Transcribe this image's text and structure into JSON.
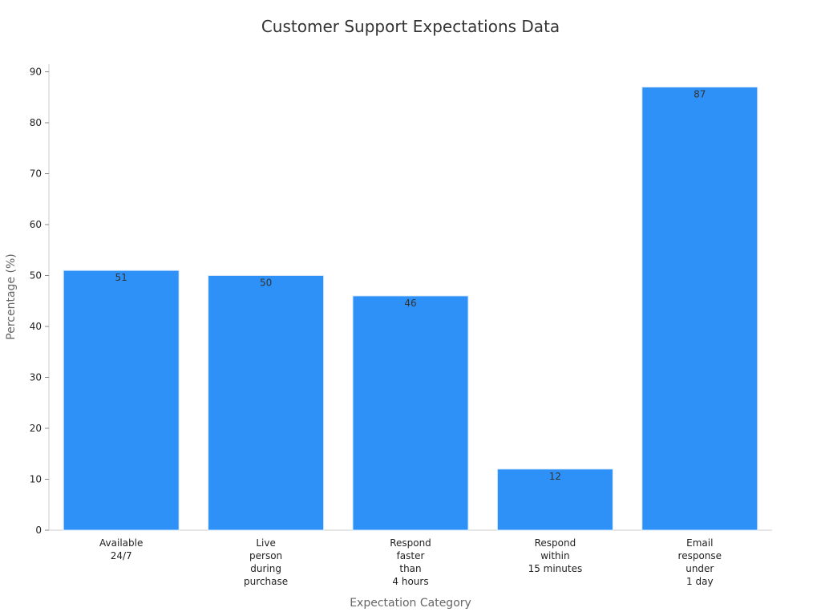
{
  "chart_data": {
    "type": "bar",
    "title": "Customer Support Expectations Data",
    "xlabel": "Expectation Category",
    "ylabel": "Percentage (%)",
    "categories": [
      [
        "Available",
        "24/7"
      ],
      [
        "Live",
        "person",
        "during",
        "purchase"
      ],
      [
        "Respond",
        "faster",
        "than",
        "4 hours"
      ],
      [
        "Respond",
        "within",
        "15 minutes"
      ],
      [
        "Email",
        "response",
        "under",
        "1 day"
      ]
    ],
    "values": [
      51,
      50,
      46,
      12,
      87
    ],
    "ylim": [
      0,
      90
    ],
    "yticks": [
      0,
      10,
      20,
      30,
      40,
      50,
      60,
      70,
      80,
      90
    ],
    "grid": false,
    "bar_color": "#2e91f7",
    "bar_edge_color": "#d9e9fb"
  }
}
